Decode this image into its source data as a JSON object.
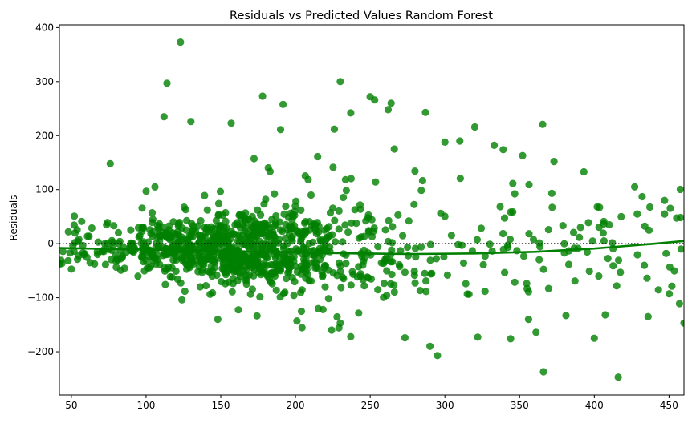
{
  "chart_data": {
    "type": "scatter",
    "title": "Residuals vs Predicted Values Random Forest",
    "xlabel": "",
    "ylabel": "Residuals",
    "xlim": [
      42,
      460
    ],
    "ylim": [
      -280,
      405
    ],
    "xticks": [
      50,
      100,
      150,
      200,
      250,
      300,
      350,
      400,
      450
    ],
    "yticks": [
      -200,
      -100,
      0,
      100,
      200,
      300,
      400
    ],
    "xtick_labels": [
      "50",
      "100",
      "150",
      "200",
      "250",
      "300",
      "350",
      "400",
      "450"
    ],
    "ytick_labels": [
      "−200",
      "−100",
      "0",
      "100",
      "200",
      "300",
      "400"
    ],
    "grid": false,
    "reference_line": {
      "y": 0,
      "style": "dotted"
    },
    "marker_color": "#008000",
    "line_color": "#008000",
    "trend_line": {
      "x": [
        42,
        80,
        120,
        160,
        200,
        240,
        280,
        320,
        360,
        400,
        440,
        460
      ],
      "y": [
        -8,
        -10,
        -12,
        -14,
        -16,
        -18,
        -19,
        -18,
        -15,
        -9,
        0,
        5
      ]
    },
    "highlighted_points": [
      {
        "x": 42,
        "y": -38
      },
      {
        "x": 48,
        "y": 22
      },
      {
        "x": 50,
        "y": -47
      },
      {
        "x": 52,
        "y": 51
      },
      {
        "x": 76,
        "y": 148
      },
      {
        "x": 100,
        "y": 97
      },
      {
        "x": 112,
        "y": 235
      },
      {
        "x": 114,
        "y": 297
      },
      {
        "x": 123,
        "y": 373
      },
      {
        "x": 130,
        "y": 226
      },
      {
        "x": 148,
        "y": -140
      },
      {
        "x": 157,
        "y": 223
      },
      {
        "x": 178,
        "y": 273
      },
      {
        "x": 190,
        "y": 211
      },
      {
        "x": 230,
        "y": 300
      },
      {
        "x": 250,
        "y": 272
      },
      {
        "x": 253,
        "y": 266
      },
      {
        "x": 264,
        "y": 260
      },
      {
        "x": 287,
        "y": 243
      },
      {
        "x": 295,
        "y": -207
      },
      {
        "x": 290,
        "y": -190
      },
      {
        "x": 320,
        "y": 216
      },
      {
        "x": 366,
        "y": -237
      },
      {
        "x": 400,
        "y": -175
      },
      {
        "x": 416,
        "y": -247
      },
      {
        "x": 436,
        "y": -135
      },
      {
        "x": 457,
        "y": -111
      },
      {
        "x": 460,
        "y": -147
      },
      {
        "x": 447,
        "y": 80
      },
      {
        "x": 447,
        "y": 55
      },
      {
        "x": 448,
        "y": -18
      },
      {
        "x": 427,
        "y": 105
      },
      {
        "x": 432,
        "y": 87
      },
      {
        "x": 418,
        "y": 50
      },
      {
        "x": 410,
        "y": 35
      },
      {
        "x": 402,
        "y": 68
      },
      {
        "x": 393,
        "y": 133
      },
      {
        "x": 373,
        "y": 152
      },
      {
        "x": 352,
        "y": 163
      },
      {
        "x": 339,
        "y": 174
      },
      {
        "x": 333,
        "y": 182
      },
      {
        "x": 310,
        "y": 190
      },
      {
        "x": 300,
        "y": 188
      },
      {
        "x": 262,
        "y": 248
      },
      {
        "x": 226,
        "y": 212
      },
      {
        "x": 237,
        "y": 242
      },
      {
        "x": 415,
        "y": -78
      },
      {
        "x": 403,
        "y": -60
      },
      {
        "x": 381,
        "y": -133
      },
      {
        "x": 344,
        "y": -176
      },
      {
        "x": 361,
        "y": -164
      },
      {
        "x": 356,
        "y": -140
      },
      {
        "x": 322,
        "y": -173
      },
      {
        "x": 237,
        "y": -172
      },
      {
        "x": 230,
        "y": -147
      },
      {
        "x": 124,
        "y": -104
      },
      {
        "x": 126,
        "y": -88
      },
      {
        "x": 201,
        "y": -143
      },
      {
        "x": 204,
        "y": -125
      }
    ],
    "cloud": {
      "seed": 20240531,
      "count": 1050,
      "x_range": [
        42,
        460
      ],
      "dense_center": 160,
      "spread_at_50": 25,
      "spread_at_250": 95,
      "spread_at_400": 85
    }
  }
}
